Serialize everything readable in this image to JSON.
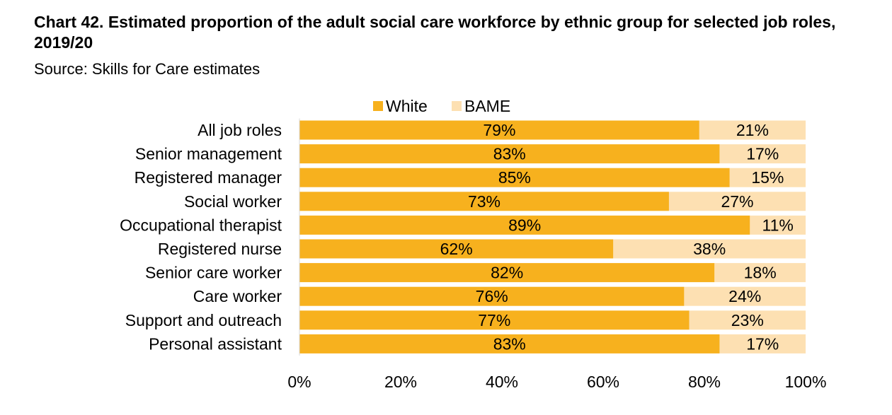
{
  "title": "Chart 42. Estimated proportion of the adult social care workforce by ethnic group for selected job roles, 2019/20",
  "subtitle": "Source: Skills for Care estimates",
  "chart_data": {
    "type": "bar",
    "orientation": "horizontal",
    "stacked": true,
    "categories": [
      "All job roles",
      "Senior management",
      "Registered manager",
      "Social worker",
      "Occupational therapist",
      "Registered nurse",
      "Senior care worker",
      "Care worker",
      "Support and outreach",
      "Personal assistant"
    ],
    "series": [
      {
        "name": "White",
        "color": "#f7b11e",
        "values": [
          79,
          83,
          85,
          73,
          89,
          62,
          82,
          76,
          77,
          83
        ],
        "labels": [
          "79%",
          "83%",
          "85%",
          "73%",
          "89%",
          "62%",
          "82%",
          "76%",
          "77%",
          "83%"
        ]
      },
      {
        "name": "BAME",
        "color": "#fde0b2",
        "values": [
          21,
          17,
          15,
          27,
          11,
          38,
          18,
          24,
          23,
          17
        ],
        "labels": [
          "21%",
          "17%",
          "15%",
          "27%",
          "11%",
          "38%",
          "18%",
          "24%",
          "23%",
          "17%"
        ]
      }
    ],
    "x_ticks": [
      "0%",
      "20%",
      "40%",
      "60%",
      "80%",
      "100%"
    ],
    "xlim": [
      0,
      100
    ],
    "grid": false,
    "legend": "top"
  }
}
